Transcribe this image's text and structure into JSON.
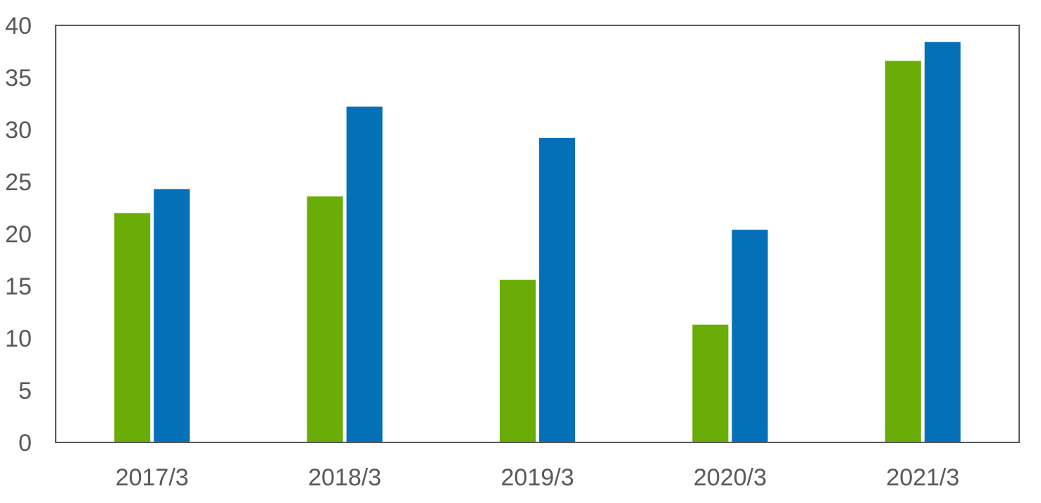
{
  "chart_data": {
    "type": "bar",
    "title": "",
    "xlabel": "",
    "ylabel": "",
    "categories": [
      "2017/3",
      "2018/3",
      "2019/3",
      "2020/3",
      "2021/3"
    ],
    "series": [
      {
        "name": "",
        "color": "#6aad06",
        "values": [
          22.0,
          23.6,
          15.6,
          11.3,
          36.6
        ]
      },
      {
        "name": "",
        "color": "#0470b8",
        "values": [
          24.3,
          32.2,
          29.2,
          20.4,
          38.4
        ]
      }
    ],
    "ylim": [
      0,
      40
    ],
    "yticks": [
      0,
      5,
      10,
      15,
      20,
      25,
      30,
      35,
      40
    ],
    "grid": false,
    "legend": "none",
    "frame_color": "#595959"
  }
}
